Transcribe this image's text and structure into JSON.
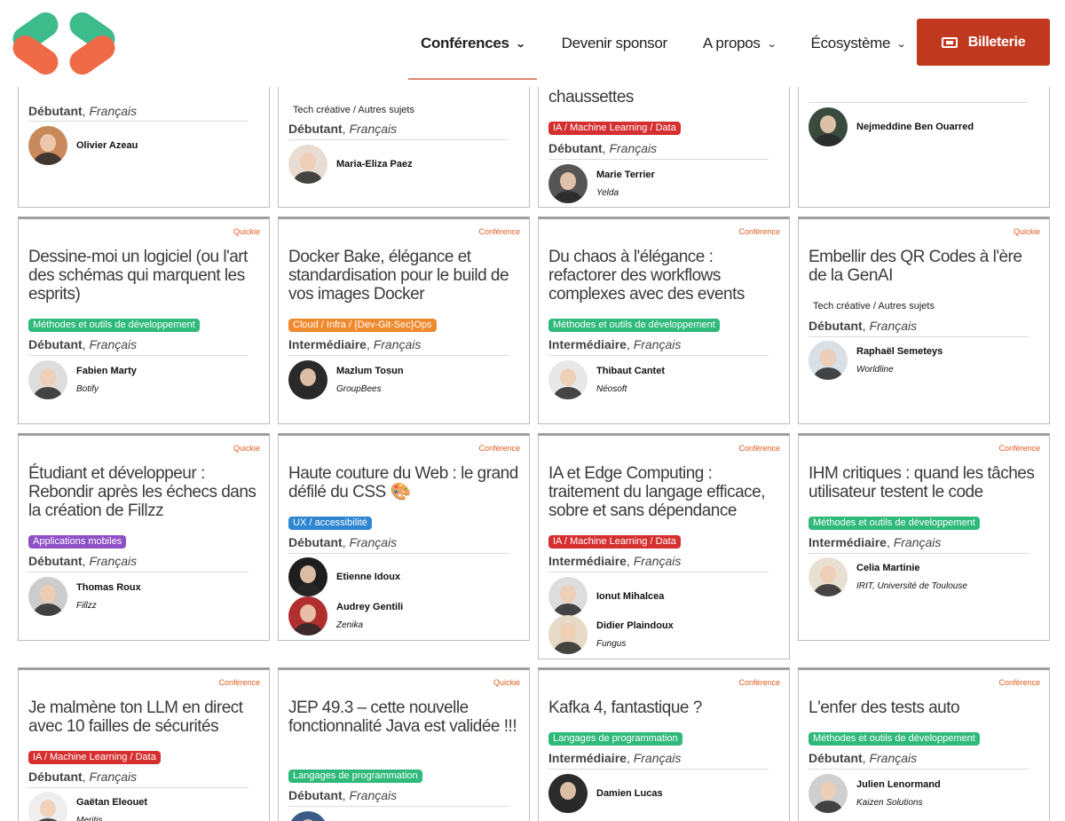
{
  "header": {
    "nav": [
      {
        "label": "Conférences",
        "has_dropdown": true,
        "active": true
      },
      {
        "label": "Devenir sponsor",
        "has_dropdown": false,
        "active": false
      },
      {
        "label": "A propos",
        "has_dropdown": true,
        "active": false
      },
      {
        "label": "Écosystème",
        "has_dropdown": true,
        "active": false
      }
    ],
    "ticket_button": "Billeterie",
    "ticket_icon": "ticket-icon",
    "logo_colors": [
      "#3dbb8b",
      "#ef6b48"
    ],
    "accent": "#c0391e"
  },
  "partial_cards": [
    {
      "level": "Débutant",
      "lang": "Français",
      "speakers": [
        {
          "name": "Olivier Azeau",
          "company": ""
        }
      ]
    },
    {
      "tag": "Tech créative / Autres sujets",
      "level": "Débutant",
      "lang": "Français",
      "speakers": [
        {
          "name": "Maria-Eliza Paez",
          "company": ""
        }
      ]
    },
    {
      "title_fragment": "chaussettes",
      "tag": "IA / Machine Learning / Data",
      "level": "Débutant",
      "lang": "Français",
      "speakers": [
        {
          "name": "Marie Terrier",
          "company": "Yelda"
        }
      ]
    },
    {
      "speakers": [
        {
          "name": "Nejmeddine Ben Ouarred",
          "company": ""
        }
      ]
    }
  ],
  "cards": [
    {
      "kind": "Quickie",
      "title": "Dessine-moi un logiciel (ou l'art des schémas qui marquent les esprits)",
      "tag": "Méthodes et outils de développement",
      "tag_color": "#2fb97a",
      "level": "Débutant",
      "lang": "Français",
      "speakers": [
        {
          "name": "Fabien Marty",
          "company": "Botify"
        }
      ]
    },
    {
      "kind": "Conférence",
      "title": "Docker Bake, élégance et standardisation pour le build de vos images Docker",
      "tag": "Cloud / Infra / {Dev-Git-Sec}Ops",
      "tag_color": "#ef8a2e",
      "level": "Intermédiaire",
      "lang": "Français",
      "speakers": [
        {
          "name": "Mazlum Tosun",
          "company": "GroupBees"
        }
      ]
    },
    {
      "kind": "Conférence",
      "title": "Du chaos à l'élégance : refactorer des workflows complexes avec des events",
      "tag": "Méthodes et outils de développement",
      "tag_color": "#2fb97a",
      "level": "Intermédiaire",
      "lang": "Français",
      "speakers": [
        {
          "name": "Thibaut Cantet",
          "company": "Néosoft"
        }
      ]
    },
    {
      "kind": "Quickie",
      "title": "Embellir des QR Codes à l'ère de la GenAI",
      "tag": "Tech créative / Autres sujets",
      "tag_color": "",
      "level": "Débutant",
      "lang": "Français",
      "speakers": [
        {
          "name": "Raphaël Semeteys",
          "company": "Worldline"
        }
      ]
    },
    {
      "kind": "Quickie",
      "title": "Étudiant et développeur : Rebondir après les échecs dans la création de Fillzz",
      "tag": "Applications mobiles",
      "tag_color": "#8e4fc7",
      "level": "Débutant",
      "lang": "Français",
      "speakers": [
        {
          "name": "Thomas Roux",
          "company": "Fillzz"
        }
      ]
    },
    {
      "kind": "Conférence",
      "title": "Haute couture du Web : le grand défilé du CSS 🎨",
      "tag": "UX / accessibilité",
      "tag_color": "#2e86d1",
      "level": "Débutant",
      "lang": "Français",
      "speakers": [
        {
          "name": "Etienne Idoux",
          "company": ""
        },
        {
          "name": "Audrey Gentili",
          "company": "Zenika"
        }
      ]
    },
    {
      "kind": "Conférence",
      "title": "IA et Edge Computing : traitement du langage efficace, sobre et sans dépendance",
      "tag": "IA / Machine Learning / Data",
      "tag_color": "#d62f2f",
      "level": "Intermédiaire",
      "lang": "Français",
      "speakers": [
        {
          "name": "Ionut Mihalcea",
          "company": ""
        },
        {
          "name": "Didier Plaindoux",
          "company": "Fungus"
        }
      ]
    },
    {
      "kind": "Conférence",
      "title": "IHM critiques : quand les tâches utilisateur testent le code",
      "tag": "Méthodes et outils de développement",
      "tag_color": "#2fb97a",
      "level": "Intermédiaire",
      "lang": "Français",
      "speakers": [
        {
          "name": "Celia Martinie",
          "company": "IRIT, Université de Toulouse"
        }
      ]
    },
    {
      "kind": "Conférence",
      "title": "Je malmène ton LLM en direct avec 10 failles de sécurités",
      "tag": "IA / Machine Learning / Data",
      "tag_color": "#d62f2f",
      "level": "Débutant",
      "lang": "Français",
      "speakers": [
        {
          "name": "Gaëtan Eleouet",
          "company": "Meritis"
        }
      ]
    },
    {
      "kind": "Quickie",
      "title": "JEP 49.3 – cette nouvelle fonctionnalité Java est validée !!!",
      "tag": "Langages de programmation",
      "tag_color": "#2fb97a",
      "level": "Débutant",
      "lang": "Français",
      "speakers": []
    },
    {
      "kind": "Conférence",
      "title": "Kafka 4, fantastique ?",
      "tag": "Langages de programmation",
      "tag_color": "#2fb97a",
      "level": "Intermédiaire",
      "lang": "Français",
      "speakers": [
        {
          "name": "Damien Lucas",
          "company": ""
        }
      ]
    },
    {
      "kind": "Conférence",
      "title": "L'enfer des tests auto",
      "tag": "Méthodes et outils de développement",
      "tag_color": "#2fb97a",
      "level": "Débutant",
      "lang": "Français",
      "speakers": [
        {
          "name": "Julien Lenormand",
          "company": "Kaizen Solutions"
        }
      ]
    }
  ]
}
